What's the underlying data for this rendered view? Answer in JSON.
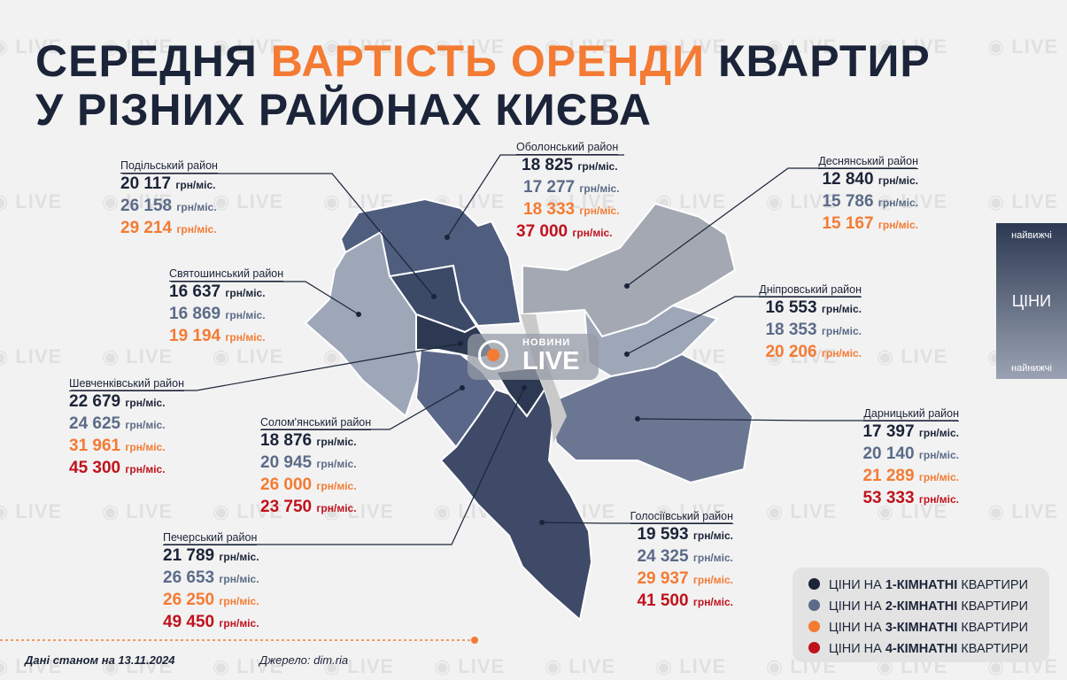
{
  "title": {
    "part1": "СЕРЕДНЯ",
    "accent": "ВАРТІСТЬ ОРЕНДИ",
    "part2": "КВАРТИР",
    "line2": "У РІЗНИХ РАЙОНАХ КИЄВА"
  },
  "unit": "грн/міс.",
  "districts": {
    "podilskyi": {
      "name": "Подільський район",
      "p1": "20 117",
      "p2": "26 158",
      "p3": "29 214"
    },
    "obolonskyi": {
      "name": "Оболонський район",
      "p1": "18 825",
      "p2": "17 277",
      "p3": "18 333",
      "p4": "37 000"
    },
    "desnianskyi": {
      "name": "Деснянський район",
      "p1": "12 840",
      "p2": "15 786",
      "p3": "15 167"
    },
    "sviatoshynskyi": {
      "name": "Святошинський район",
      "p1": "16 637",
      "p2": "16 869",
      "p3": "19 194"
    },
    "dniprovskyi": {
      "name": "Дніпровський район",
      "p1": "16 553",
      "p2": "18 353",
      "p3": "20 206"
    },
    "shevchenkivskyi": {
      "name": "Шевченківський район",
      "p1": "22 679",
      "p2": "24 625",
      "p3": "31 961",
      "p4": "45 300"
    },
    "solomianskyi": {
      "name": "Солом'янський район",
      "p1": "18 876",
      "p2": "20 945",
      "p3": "26 000",
      "p4": "23 750"
    },
    "darnytskyi": {
      "name": "Дарницький район",
      "p1": "17 397",
      "p2": "20 140",
      "p3": "21 289",
      "p4": "53 333"
    },
    "pecherskyi": {
      "name": "Печерський район",
      "p1": "21 789",
      "p2": "26 653",
      "p3": "26 250",
      "p4": "49 450"
    },
    "holosiivskyi": {
      "name": "Голосіївський район",
      "p1": "19 593",
      "p2": "24 325",
      "p3": "29 937",
      "p4": "41 500"
    }
  },
  "scale": {
    "top": "найвижчі",
    "label": "ЦІНИ",
    "bottom": "найнижчі"
  },
  "legend": [
    {
      "prefix": "ЦІНИ НА ",
      "bold": "1-КІМНАТНІ",
      "suffix": " КВАРТИРИ",
      "color": "#1b2438"
    },
    {
      "prefix": "ЦІНИ НА ",
      "bold": "2-КІМНАТНІ",
      "suffix": " КВАРТИРИ",
      "color": "#5b6b88"
    },
    {
      "prefix": "ЦІНИ НА ",
      "bold": "3-КІМНАТНІ",
      "suffix": " КВАРТИРИ",
      "color": "#f47b33"
    },
    {
      "prefix": "ЦІНИ НА ",
      "bold": "4-КІМНАТНІ",
      "suffix": " КВАРТИРИ",
      "color": "#c0121c"
    }
  ],
  "footer": {
    "date": "Дані станом на 13.11.2024",
    "source": "Джерело: dim.ria"
  },
  "logo": {
    "brand": "НОВИНИ",
    "live": "LIVE"
  },
  "watermark": "LIVE",
  "colors": {
    "accent": "#f47b33",
    "dark": "#1b2438",
    "mid": "#5b6b88",
    "red": "#c0121c"
  }
}
